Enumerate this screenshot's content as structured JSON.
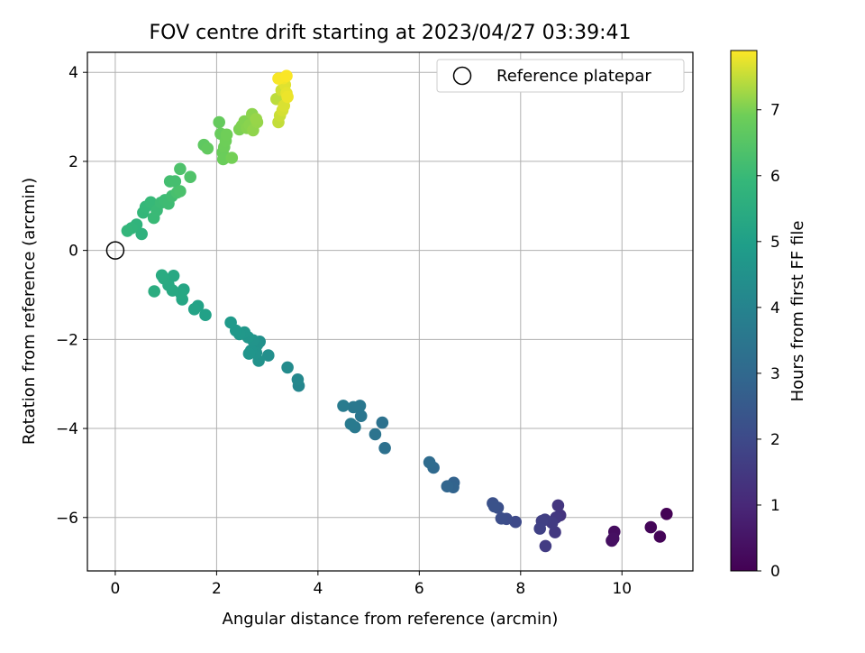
{
  "chart_data": {
    "type": "scatter",
    "title": "FOV centre drift starting at 2023/04/27 03:39:41",
    "xlabel": "Angular distance from reference (arcmin)",
    "ylabel": "Rotation from reference (arcmin)",
    "xlim": [
      -0.55,
      11.4
    ],
    "ylim": [
      -7.2,
      4.45
    ],
    "xticks": [
      0,
      2,
      4,
      6,
      8,
      10
    ],
    "yticks": [
      -6,
      -4,
      -2,
      0,
      2,
      4
    ],
    "grid": true,
    "legend": {
      "position": "top-right",
      "label": "Reference platepar"
    },
    "reference_point": {
      "x": 0,
      "y": 0
    },
    "colorbar": {
      "label": "Hours from first FF file",
      "colormap": "viridis",
      "range": [
        0,
        7.9
      ],
      "ticks": [
        0,
        1,
        2,
        3,
        4,
        5,
        6,
        7
      ]
    },
    "points": [
      {
        "x": 10.88,
        "y": -5.92,
        "t": 0.03
      },
      {
        "x": 10.75,
        "y": -6.43,
        "t": 0.07
      },
      {
        "x": 10.57,
        "y": -6.22,
        "t": 0.12
      },
      {
        "x": 9.85,
        "y": -6.32,
        "t": 0.3
      },
      {
        "x": 9.8,
        "y": -6.52,
        "t": 0.35
      },
      {
        "x": 9.83,
        "y": -6.47,
        "t": 0.38
      },
      {
        "x": 8.78,
        "y": -5.95,
        "t": 1.35
      },
      {
        "x": 8.74,
        "y": -5.73,
        "t": 1.4
      },
      {
        "x": 8.7,
        "y": -6.0,
        "t": 1.45
      },
      {
        "x": 8.68,
        "y": -6.33,
        "t": 1.5
      },
      {
        "x": 8.62,
        "y": -6.12,
        "t": 1.55
      },
      {
        "x": 8.49,
        "y": -6.64,
        "t": 1.6
      },
      {
        "x": 8.48,
        "y": -6.05,
        "t": 1.65
      },
      {
        "x": 8.42,
        "y": -6.08,
        "t": 1.7
      },
      {
        "x": 8.38,
        "y": -6.25,
        "t": 1.75
      },
      {
        "x": 7.9,
        "y": -6.1,
        "t": 2.0
      },
      {
        "x": 7.72,
        "y": -6.03,
        "t": 2.08
      },
      {
        "x": 7.62,
        "y": -6.02,
        "t": 2.12
      },
      {
        "x": 7.55,
        "y": -5.78,
        "t": 2.18
      },
      {
        "x": 7.45,
        "y": -5.68,
        "t": 2.22
      },
      {
        "x": 7.48,
        "y": -5.75,
        "t": 2.25
      },
      {
        "x": 6.68,
        "y": -5.22,
        "t": 2.8
      },
      {
        "x": 6.67,
        "y": -5.32,
        "t": 2.85
      },
      {
        "x": 6.55,
        "y": -5.3,
        "t": 2.9
      },
      {
        "x": 6.28,
        "y": -4.88,
        "t": 3.05
      },
      {
        "x": 6.2,
        "y": -4.76,
        "t": 3.1
      },
      {
        "x": 5.32,
        "y": -4.44,
        "t": 3.3
      },
      {
        "x": 5.27,
        "y": -3.87,
        "t": 3.35
      },
      {
        "x": 5.13,
        "y": -4.13,
        "t": 3.4
      },
      {
        "x": 4.85,
        "y": -3.72,
        "t": 3.5
      },
      {
        "x": 4.83,
        "y": -3.49,
        "t": 3.55
      },
      {
        "x": 4.7,
        "y": -3.52,
        "t": 3.58
      },
      {
        "x": 4.73,
        "y": -3.97,
        "t": 3.62
      },
      {
        "x": 4.65,
        "y": -3.9,
        "t": 3.65
      },
      {
        "x": 4.5,
        "y": -3.49,
        "t": 3.7
      },
      {
        "x": 3.62,
        "y": -3.04,
        "t": 4.1
      },
      {
        "x": 3.6,
        "y": -2.9,
        "t": 4.15
      },
      {
        "x": 3.4,
        "y": -2.63,
        "t": 4.25
      },
      {
        "x": 3.02,
        "y": -2.36,
        "t": 4.4
      },
      {
        "x": 2.85,
        "y": -2.05,
        "t": 4.45
      },
      {
        "x": 2.83,
        "y": -2.48,
        "t": 4.5
      },
      {
        "x": 2.8,
        "y": -2.12,
        "t": 4.52
      },
      {
        "x": 2.78,
        "y": -2.3,
        "t": 4.55
      },
      {
        "x": 2.72,
        "y": -2.02,
        "t": 4.58
      },
      {
        "x": 2.68,
        "y": -2.25,
        "t": 4.6
      },
      {
        "x": 2.64,
        "y": -2.32,
        "t": 4.62
      },
      {
        "x": 2.62,
        "y": -1.95,
        "t": 4.65
      },
      {
        "x": 2.55,
        "y": -1.84,
        "t": 4.68
      },
      {
        "x": 2.45,
        "y": -1.88,
        "t": 4.72
      },
      {
        "x": 2.38,
        "y": -1.8,
        "t": 4.75
      },
      {
        "x": 2.28,
        "y": -1.62,
        "t": 4.8
      },
      {
        "x": 1.78,
        "y": -1.45,
        "t": 5.05
      },
      {
        "x": 1.63,
        "y": -1.25,
        "t": 5.1
      },
      {
        "x": 1.56,
        "y": -1.32,
        "t": 5.15
      },
      {
        "x": 1.35,
        "y": -0.88,
        "t": 5.22
      },
      {
        "x": 1.32,
        "y": -1.1,
        "t": 5.25
      },
      {
        "x": 1.3,
        "y": -0.97,
        "t": 5.28
      },
      {
        "x": 1.15,
        "y": -0.57,
        "t": 5.32
      },
      {
        "x": 1.13,
        "y": -0.9,
        "t": 5.35
      },
      {
        "x": 1.05,
        "y": -0.78,
        "t": 5.38
      },
      {
        "x": 0.96,
        "y": -0.63,
        "t": 5.42
      },
      {
        "x": 0.92,
        "y": -0.56,
        "t": 5.45
      },
      {
        "x": 0.77,
        "y": -0.92,
        "t": 5.5
      },
      {
        "x": 0.52,
        "y": 0.37,
        "t": 5.7
      },
      {
        "x": 0.42,
        "y": 0.58,
        "t": 5.75
      },
      {
        "x": 0.32,
        "y": 0.5,
        "t": 5.8
      },
      {
        "x": 0.24,
        "y": 0.44,
        "t": 5.85
      },
      {
        "x": 0.55,
        "y": 0.85,
        "t": 5.9
      },
      {
        "x": 0.6,
        "y": 0.98,
        "t": 5.93
      },
      {
        "x": 0.7,
        "y": 1.08,
        "t": 5.96
      },
      {
        "x": 0.76,
        "y": 0.73,
        "t": 6.0
      },
      {
        "x": 0.82,
        "y": 0.9,
        "t": 6.02
      },
      {
        "x": 0.9,
        "y": 1.07,
        "t": 6.05
      },
      {
        "x": 0.98,
        "y": 1.13,
        "t": 6.08
      },
      {
        "x": 1.05,
        "y": 1.05,
        "t": 6.1
      },
      {
        "x": 1.12,
        "y": 1.22,
        "t": 6.15
      },
      {
        "x": 1.08,
        "y": 1.55,
        "t": 6.18
      },
      {
        "x": 1.18,
        "y": 1.55,
        "t": 6.22
      },
      {
        "x": 1.22,
        "y": 1.3,
        "t": 6.25
      },
      {
        "x": 1.28,
        "y": 1.33,
        "t": 6.3
      },
      {
        "x": 1.28,
        "y": 1.83,
        "t": 6.35
      },
      {
        "x": 1.48,
        "y": 1.65,
        "t": 6.4
      },
      {
        "x": 1.75,
        "y": 2.37,
        "t": 6.65
      },
      {
        "x": 1.82,
        "y": 2.29,
        "t": 6.7
      },
      {
        "x": 2.05,
        "y": 2.88,
        "t": 6.75
      },
      {
        "x": 2.08,
        "y": 2.62,
        "t": 6.8
      },
      {
        "x": 2.12,
        "y": 2.2,
        "t": 6.82
      },
      {
        "x": 2.13,
        "y": 2.05,
        "t": 6.85
      },
      {
        "x": 2.15,
        "y": 2.32,
        "t": 6.88
      },
      {
        "x": 2.18,
        "y": 2.46,
        "t": 6.9
      },
      {
        "x": 2.2,
        "y": 2.6,
        "t": 6.92
      },
      {
        "x": 2.3,
        "y": 2.08,
        "t": 6.95
      },
      {
        "x": 2.45,
        "y": 2.72,
        "t": 7.0
      },
      {
        "x": 2.5,
        "y": 2.8,
        "t": 7.02
      },
      {
        "x": 2.55,
        "y": 2.9,
        "t": 7.05
      },
      {
        "x": 2.6,
        "y": 2.75,
        "t": 7.08
      },
      {
        "x": 2.65,
        "y": 2.82,
        "t": 7.1
      },
      {
        "x": 2.7,
        "y": 3.06,
        "t": 7.12
      },
      {
        "x": 2.72,
        "y": 2.7,
        "t": 7.15
      },
      {
        "x": 2.8,
        "y": 2.88,
        "t": 7.18
      },
      {
        "x": 2.78,
        "y": 2.95,
        "t": 7.2
      },
      {
        "x": 3.18,
        "y": 3.4,
        "t": 7.45
      },
      {
        "x": 3.22,
        "y": 2.88,
        "t": 7.5
      },
      {
        "x": 3.25,
        "y": 3.03,
        "t": 7.55
      },
      {
        "x": 3.28,
        "y": 3.6,
        "t": 7.58
      },
      {
        "x": 3.3,
        "y": 3.15,
        "t": 7.62
      },
      {
        "x": 3.33,
        "y": 3.25,
        "t": 7.65
      },
      {
        "x": 3.35,
        "y": 3.72,
        "t": 7.7
      },
      {
        "x": 3.38,
        "y": 3.53,
        "t": 7.74
      },
      {
        "x": 3.4,
        "y": 3.45,
        "t": 7.78
      },
      {
        "x": 3.32,
        "y": 3.87,
        "t": 7.82
      },
      {
        "x": 3.22,
        "y": 3.86,
        "t": 7.86
      },
      {
        "x": 3.38,
        "y": 3.92,
        "t": 7.88
      }
    ]
  }
}
